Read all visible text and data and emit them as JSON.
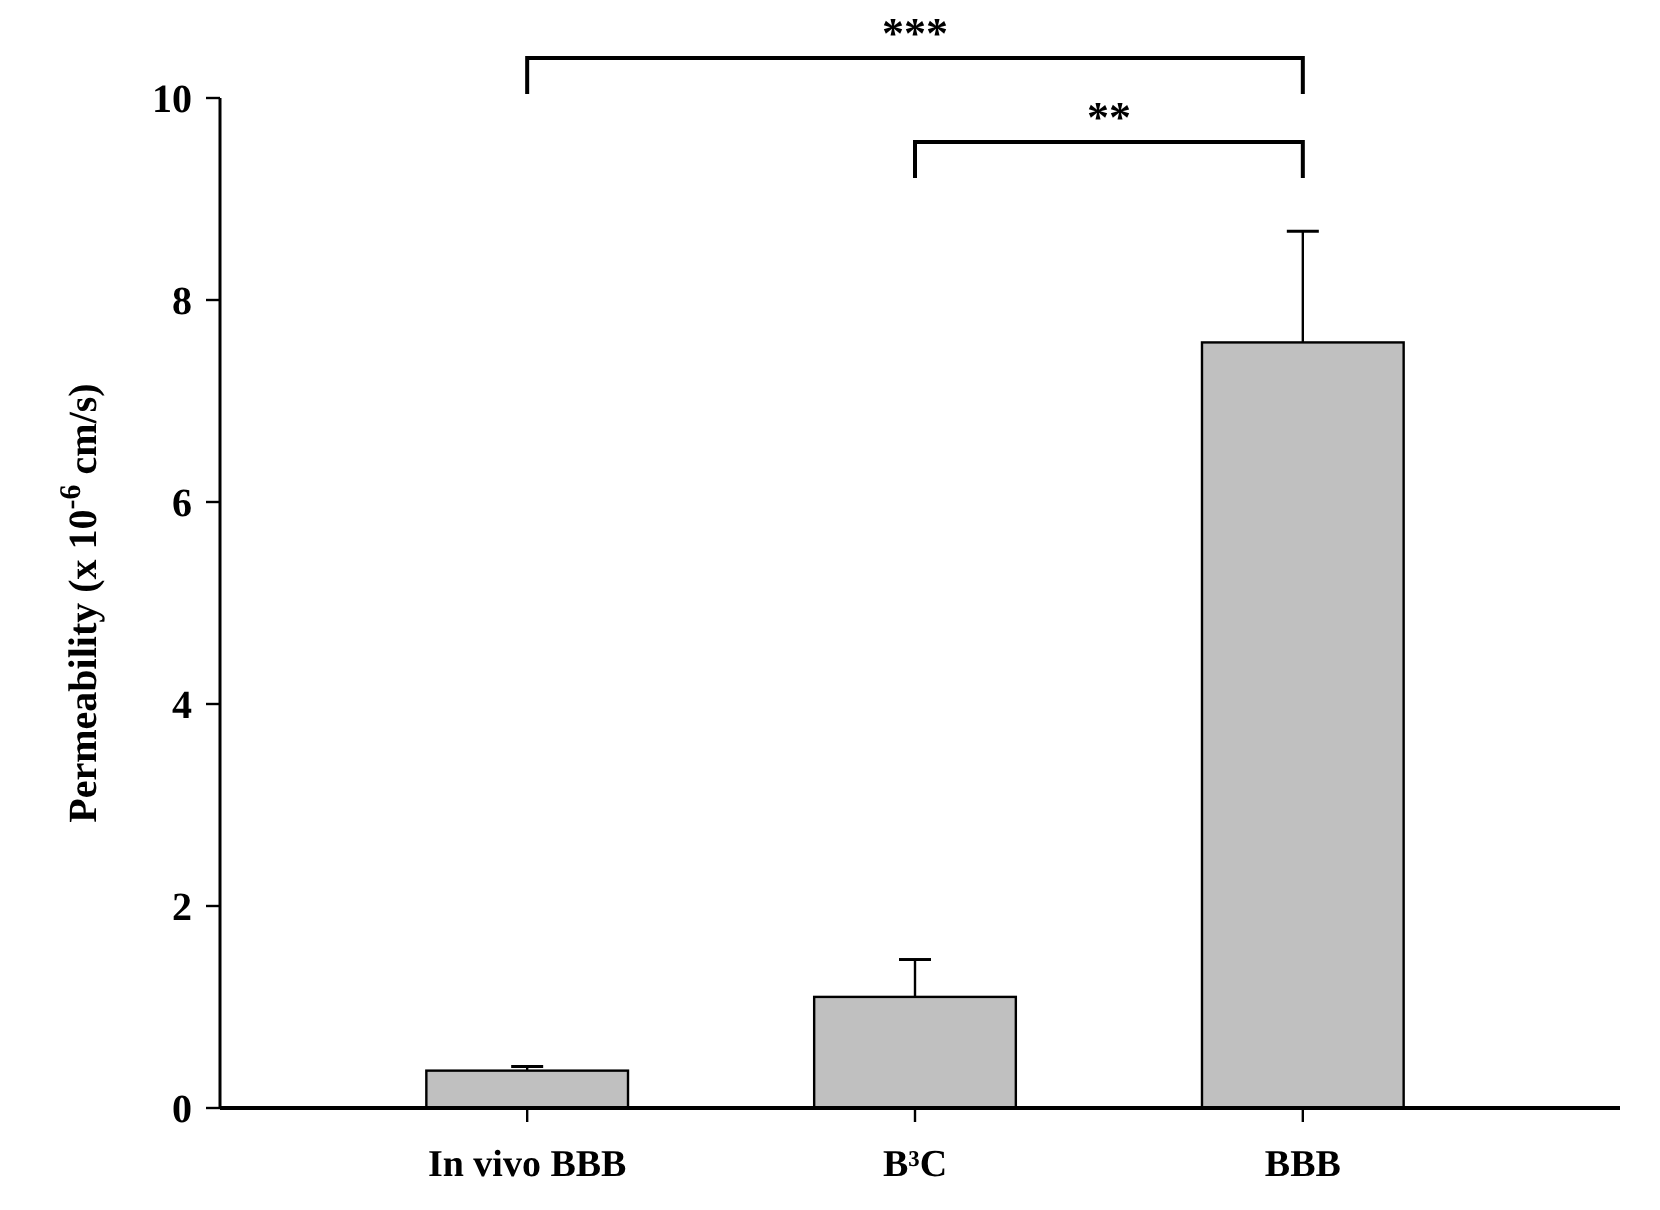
{
  "chart_data": {
    "type": "bar",
    "ylabel": "Permeability (x 10$^{-6}$ cm/s)",
    "categories": [
      "In vivo BBB",
      "B³C",
      "BBB"
    ],
    "values": [
      0.37,
      1.1,
      7.58
    ],
    "errors": [
      0.04,
      0.37,
      1.1
    ],
    "color": "#c0c0c0",
    "ylim": [
      0,
      10
    ],
    "yticks": [
      0,
      2,
      4,
      6,
      8,
      10
    ],
    "annotations": [
      "***",
      "**"
    ],
    "grid": false
  }
}
